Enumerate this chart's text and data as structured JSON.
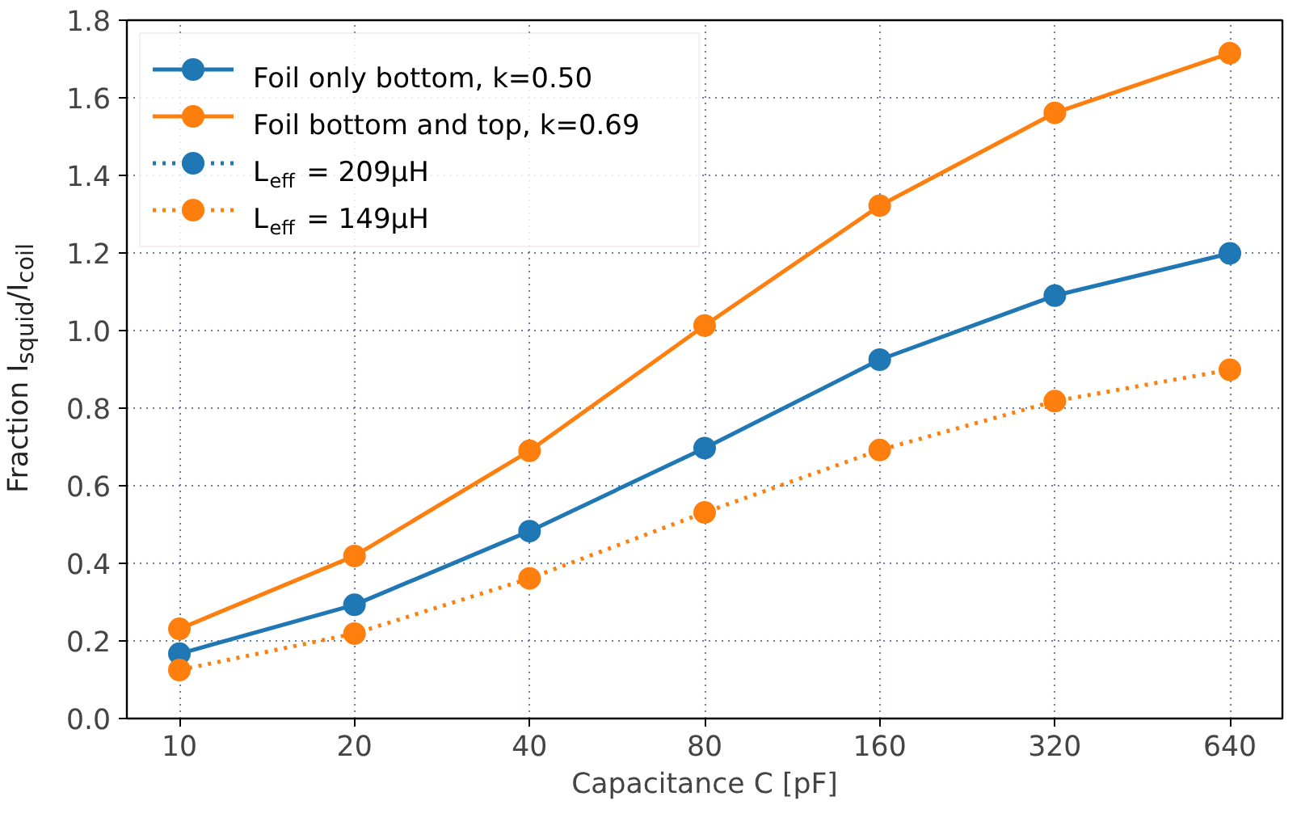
{
  "chart_data": {
    "type": "line",
    "xlabel": "Capacitance C [pF]",
    "ylabel": "Fraction I$_{squid}$/I$_{coil}$",
    "categories": [
      "10",
      "20",
      "40",
      "80",
      "160",
      "320",
      "640"
    ],
    "ylim": [
      0,
      1.8
    ],
    "yticks": [
      {
        "value": 0,
        "label": "0.0"
      },
      0.2,
      0.4,
      0.6,
      0.8,
      {
        "value": 1,
        "label": "1.0"
      },
      1.2,
      1.4,
      1.6,
      1.8
    ],
    "grid": true,
    "legend": "top left",
    "marker": "circle",
    "series": [
      {
        "name": "Foil only bottom, k=0.50",
        "color": "#1f77b4",
        "line_style": "solid",
        "values": [
          0.167,
          0.293,
          0.483,
          0.697,
          0.925,
          1.09,
          1.199
        ]
      },
      {
        "name": "Foil bottom and top, k=0.69",
        "color": "#ff7f0e",
        "line_style": "solid",
        "values": [
          0.231,
          0.419,
          0.69,
          1.013,
          1.322,
          1.561,
          1.715
        ]
      },
      {
        "name": "L$_{eff}$ = 209μH",
        "color": "#1f77b4",
        "line_style": "dotted",
        "values": [
          null,
          null,
          null,
          null,
          null,
          null,
          null
        ]
      },
      {
        "name": "L$_{eff}$ = 149μH",
        "color": "#ff7f0e",
        "line_style": "dotted",
        "values": [
          0.125,
          0.219,
          0.361,
          0.531,
          0.692,
          0.818,
          0.899
        ]
      }
    ]
  }
}
